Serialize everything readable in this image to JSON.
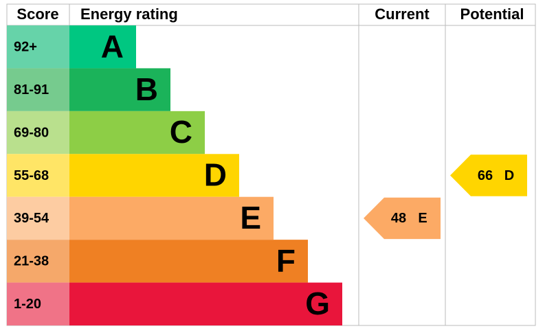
{
  "chart_data": {
    "type": "epc",
    "headers": [
      "Score",
      "Energy rating",
      "Current",
      "Potential"
    ],
    "bands": [
      {
        "score": "92+",
        "letter": "A",
        "color": "#00c781",
        "score_color": "#66d3a9"
      },
      {
        "score": "81-91",
        "letter": "B",
        "color": "#1bb35a",
        "score_color": "#76cb8e"
      },
      {
        "score": "69-80",
        "letter": "C",
        "color": "#8dce46",
        "score_color": "#b9e08d"
      },
      {
        "score": "55-68",
        "letter": "D",
        "color": "#ffd500",
        "score_color": "#ffe566"
      },
      {
        "score": "39-54",
        "letter": "E",
        "color": "#fcaa65",
        "score_color": "#fdcca2"
      },
      {
        "score": "21-38",
        "letter": "F",
        "color": "#ef8023",
        "score_color": "#f5a86a"
      },
      {
        "score": "1-20",
        "letter": "G",
        "color": "#e9153b",
        "score_color": "#f07387"
      }
    ],
    "current": {
      "value": 48,
      "letter": "E"
    },
    "potential": {
      "value": 66,
      "letter": "D"
    }
  }
}
